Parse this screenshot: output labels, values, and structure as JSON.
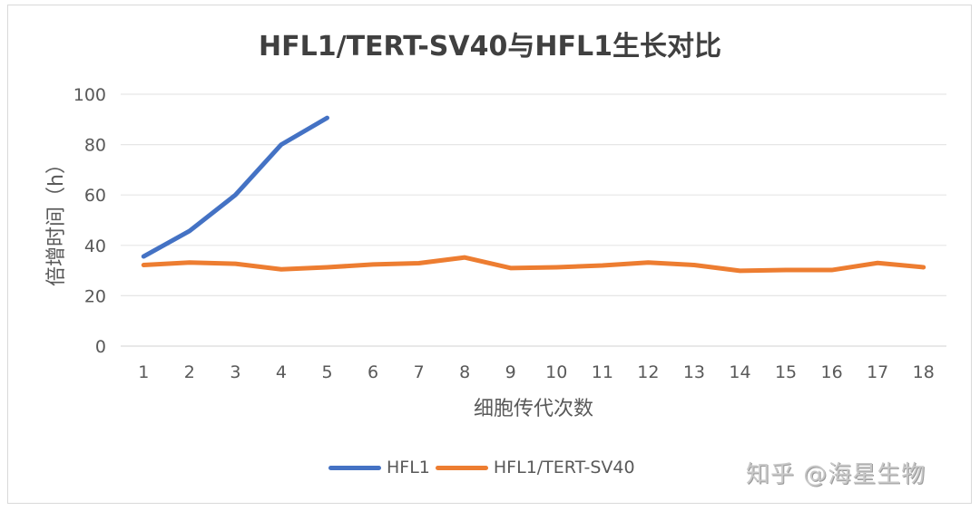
{
  "chart_data": {
    "type": "line",
    "title": "HFL1/TERT-SV40与HFL1生长对比",
    "xlabel": "细胞传代次数",
    "ylabel": "倍增时间（h）",
    "ylim": [
      0,
      100
    ],
    "yticks": [
      0,
      20,
      40,
      60,
      80,
      100
    ],
    "grid": true,
    "legend_position": "bottom",
    "categories": [
      "1",
      "2",
      "3",
      "4",
      "5",
      "6",
      "7",
      "8",
      "9",
      "10",
      "11",
      "12",
      "13",
      "14",
      "15",
      "16",
      "17",
      "18"
    ],
    "series": [
      {
        "name": "HFL1",
        "color": "#4472c4",
        "values": [
          35.6,
          45.7,
          60.0,
          80.0,
          90.6,
          null,
          null,
          null,
          null,
          null,
          null,
          null,
          null,
          null,
          null,
          null,
          null,
          null
        ]
      },
      {
        "name": "HFL1/TERT-SV40",
        "color": "#ed7d31",
        "values": [
          32.2,
          33.2,
          32.7,
          30.5,
          31.3,
          32.4,
          32.9,
          35.2,
          31.0,
          31.3,
          32.0,
          33.2,
          32.2,
          29.9,
          30.2,
          30.2,
          33.0,
          31.3
        ]
      }
    ]
  },
  "watermark": "知乎 @海星生物"
}
